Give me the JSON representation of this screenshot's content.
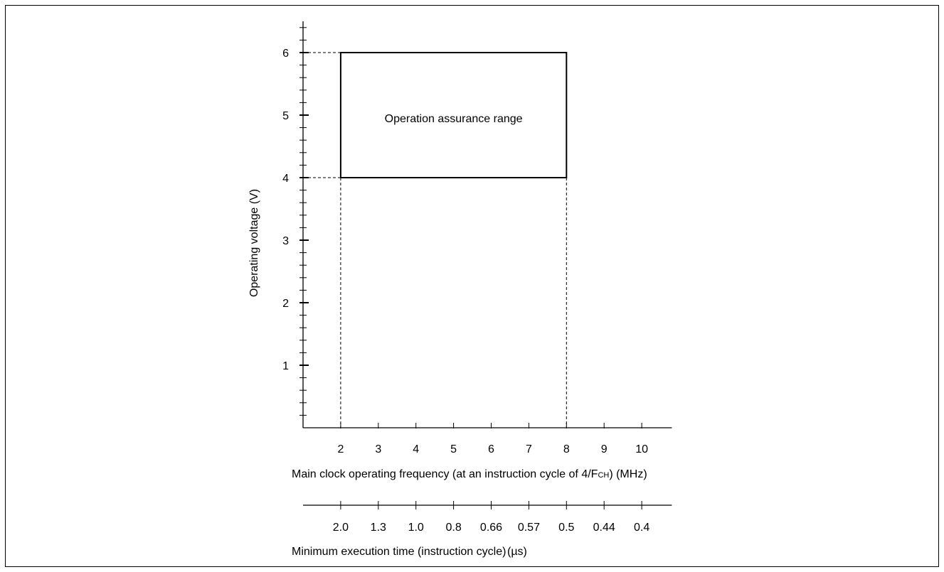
{
  "chart_data": {
    "type": "area",
    "title": "",
    "xlabel": "Main clock operating frequency (at an instruction cycle of 4/F",
    "xlabel_sub": "CH",
    "xlabel_unit": ") (MHz)",
    "ylabel": "Operating voltage (V)",
    "x_ticks": [
      2,
      3,
      4,
      5,
      6,
      7,
      8,
      9,
      10
    ],
    "y_ticks": [
      1,
      2,
      3,
      4,
      5,
      6
    ],
    "xlim": [
      1,
      10.8
    ],
    "ylim": [
      0,
      6.5
    ],
    "region": {
      "label": "Operation assurance range",
      "x": [
        2,
        8
      ],
      "y": [
        4,
        6
      ]
    },
    "secondary_axis": {
      "label": "Minimum execution time (instruction cycle)",
      "unit": "(µs)",
      "values": [
        "2.0",
        "1.3",
        "1.0",
        "0.8",
        "0.66",
        "0.57",
        "0.5",
        "0.44",
        "0.4"
      ]
    },
    "grid": false
  }
}
